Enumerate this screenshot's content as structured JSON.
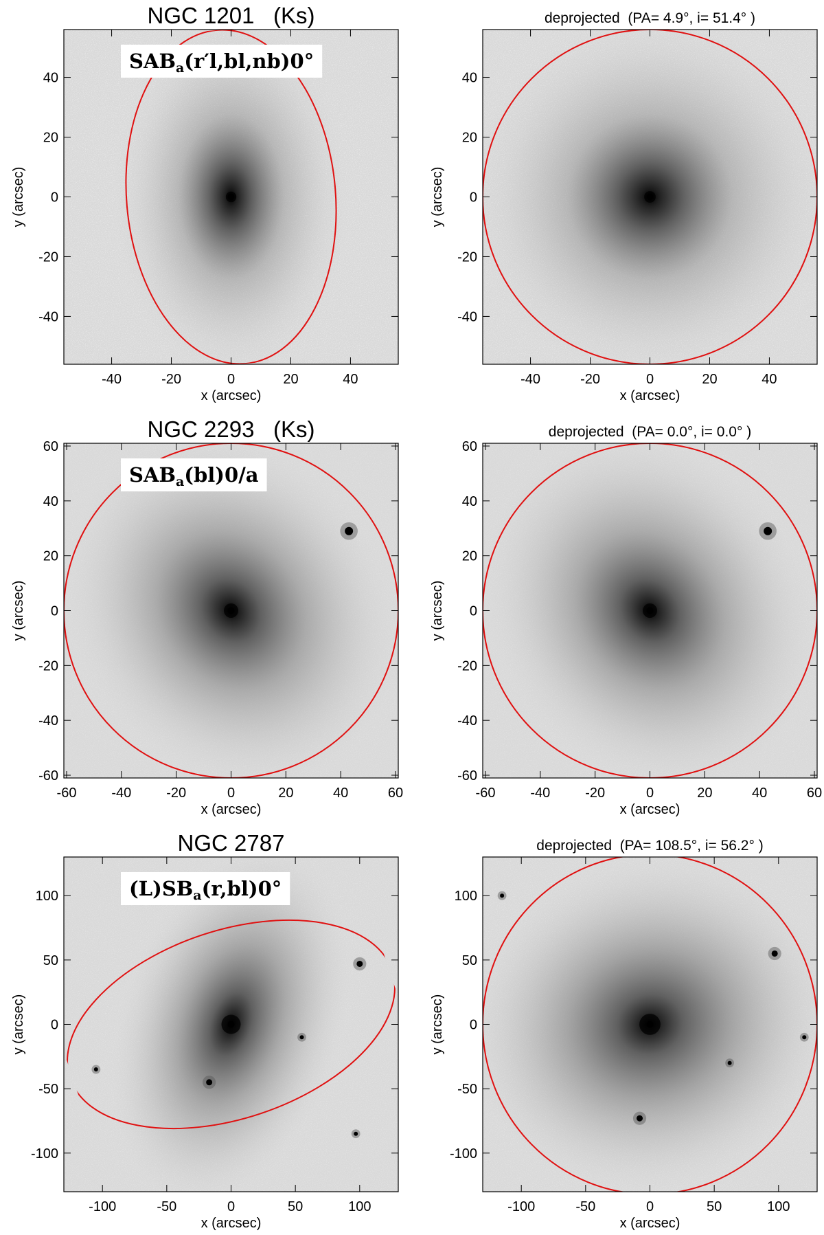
{
  "colors": {
    "ellipse": "#e01010",
    "axes": "#000000",
    "classification_box": "#ffffff"
  },
  "panels": [
    {
      "id": "ngc1201-observed",
      "title": "NGC 1201   (Ks)",
      "title_style": "big",
      "classification": {
        "main": "SAB",
        "sub": "a",
        "rest": "(r′l,bl,nb)0°"
      },
      "xlim": [
        -56,
        56
      ],
      "ylim": [
        -56,
        56
      ],
      "xticks": [
        -40,
        -20,
        0,
        20,
        40
      ],
      "yticks": [
        -40,
        -20,
        0,
        20,
        40
      ],
      "xlabel": "x (arcsec)",
      "ylabel": "y (arcsec)",
      "image": {
        "noise": 0.85,
        "core": 22,
        "halo": 0.35,
        "ellip_q": 0.64,
        "rot_deg": 0
      },
      "ellipse": {
        "cx": 0,
        "cy": 0,
        "a": 56,
        "b": 35,
        "pa_deg": 4.9
      },
      "stars": []
    },
    {
      "id": "ngc1201-deprojected",
      "title": "deprojected  (PA= 4.9°, i= 51.4° )",
      "title_style": "small",
      "classification": null,
      "xlim": [
        -56,
        56
      ],
      "ylim": [
        -56,
        56
      ],
      "xticks": [
        -40,
        -20,
        0,
        20,
        40
      ],
      "yticks": [
        -40,
        -20,
        0,
        20,
        40
      ],
      "xlabel": "x (arcsec)",
      "ylabel": "y (arcsec)",
      "image": {
        "noise": 0.8,
        "core": 24,
        "halo": 0.35,
        "ellip_q": 1.0,
        "rot_deg": 0
      },
      "ellipse": {
        "cx": 0,
        "cy": 0,
        "a": 56,
        "b": 56,
        "pa_deg": 0
      },
      "stars": []
    },
    {
      "id": "ngc2293-observed",
      "title": "NGC 2293   (Ks)",
      "title_style": "big",
      "classification": {
        "main": "SAB",
        "sub": "a",
        "rest": "(bl)0/a"
      },
      "xlim": [
        -61,
        61
      ],
      "ylim": [
        -61,
        61
      ],
      "xticks": [
        -60,
        -40,
        -20,
        0,
        20,
        40,
        60
      ],
      "yticks": [
        -60,
        -40,
        -20,
        0,
        20,
        40,
        60
      ],
      "xlabel": "x (arcsec)",
      "ylabel": "y (arcsec)",
      "image": {
        "noise": 0.45,
        "core": 30,
        "halo": 0.55,
        "ellip_q": 0.85,
        "rot_deg": -35
      },
      "ellipse": {
        "cx": 0,
        "cy": 0,
        "a": 61,
        "b": 61,
        "pa_deg": 0
      },
      "stars": [
        {
          "x": 43,
          "y": 29,
          "r": 4
        }
      ]
    },
    {
      "id": "ngc2293-deprojected",
      "title": "deprojected  (PA= 0.0°, i= 0.0° )",
      "title_style": "small",
      "classification": null,
      "xlim": [
        -61,
        61
      ],
      "ylim": [
        -61,
        61
      ],
      "xticks": [
        -60,
        -40,
        -20,
        0,
        20,
        40,
        60
      ],
      "yticks": [
        -60,
        -40,
        -20,
        0,
        20,
        40,
        60
      ],
      "xlabel": "x (arcsec)",
      "ylabel": "y (arcsec)",
      "image": {
        "noise": 0.45,
        "core": 30,
        "halo": 0.55,
        "ellip_q": 0.85,
        "rot_deg": -35
      },
      "ellipse": {
        "cx": 0,
        "cy": 0,
        "a": 61,
        "b": 61,
        "pa_deg": 0
      },
      "stars": [
        {
          "x": 43,
          "y": 29,
          "r": 4
        }
      ]
    },
    {
      "id": "ngc2787-observed",
      "title": "NGC 2787",
      "title_style": "big",
      "classification": {
        "main": "(L)SB",
        "sub": "a",
        "rest": "(r,bl)0°"
      },
      "xlim": [
        -130,
        130
      ],
      "ylim": [
        -130,
        130
      ],
      "xticks": [
        -100,
        -50,
        0,
        50,
        100
      ],
      "yticks": [
        -100,
        -50,
        0,
        50,
        100
      ],
      "xlabel": "x (arcsec)",
      "ylabel": "y (arcsec)",
      "image": {
        "noise": 0.55,
        "core": 40,
        "halo": 0.6,
        "ellip_q": 0.6,
        "rot_deg": 18
      },
      "ellipse": {
        "cx": 0,
        "cy": 0,
        "a": 132,
        "b": 73,
        "pa_deg": 108.5
      },
      "stars": [
        {
          "x": -17,
          "y": -45,
          "r": 3
        },
        {
          "x": 100,
          "y": 47,
          "r": 3
        },
        {
          "x": 55,
          "y": -10,
          "r": 2
        },
        {
          "x": 97,
          "y": -85,
          "r": 2
        },
        {
          "x": -105,
          "y": -35,
          "r": 2
        }
      ]
    },
    {
      "id": "ngc2787-deprojected",
      "title": "deprojected  (PA= 108.5°, i= 56.2° )",
      "title_style": "small",
      "classification": null,
      "xlim": [
        -130,
        130
      ],
      "ylim": [
        -130,
        130
      ],
      "xticks": [
        -100,
        -50,
        0,
        50,
        100
      ],
      "yticks": [
        -100,
        -50,
        0,
        50,
        100
      ],
      "xlabel": "x (arcsec)",
      "ylabel": "y (arcsec)",
      "image": {
        "noise": 0.55,
        "core": 44,
        "halo": 0.65,
        "ellip_q": 0.9,
        "rot_deg": 75
      },
      "ellipse": {
        "cx": 0,
        "cy": 0,
        "a": 132,
        "b": 130,
        "pa_deg": 0
      },
      "stars": [
        {
          "x": 97,
          "y": 55,
          "r": 3
        },
        {
          "x": 62,
          "y": -30,
          "r": 2
        },
        {
          "x": -8,
          "y": -73,
          "r": 3
        },
        {
          "x": -115,
          "y": 100,
          "r": 2
        },
        {
          "x": 120,
          "y": -10,
          "r": 2
        }
      ]
    }
  ]
}
